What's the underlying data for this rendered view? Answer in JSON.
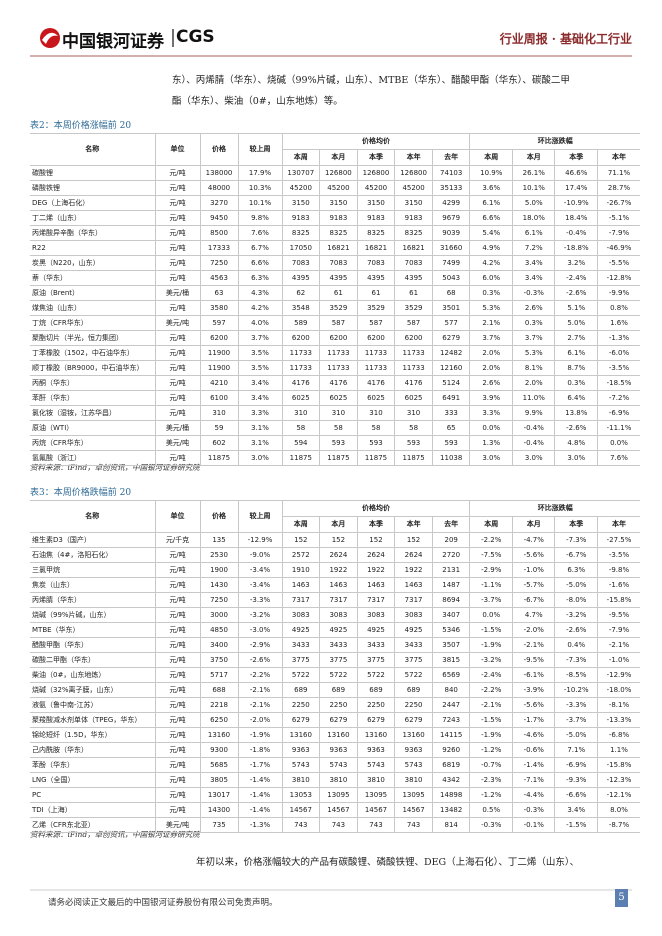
{
  "header": {
    "logo_cn": "中国银河证券",
    "logo_en": "CGS",
    "report_type": "行业周报",
    "separator": "·",
    "industry": "基础化工行业"
  },
  "intro_lines": [
    "东）、丙烯腈（华东）、烧碱（99%片碱，山东）、MTBE（华东）、醋酸甲酯（华东）、碳酸二甲",
    "酯（华东）、柴油（0#，山东地炼）等。"
  ],
  "tables": [
    {
      "caption": "表2：本周价格涨幅前 20",
      "columns": {
        "name": "名称",
        "unit": "单位",
        "price": "价格",
        "weekly_change": "较上周",
        "avg_group": "价格均价",
        "avg_cols": [
          "本周",
          "本月",
          "本季",
          "本年",
          "去年"
        ],
        "chg_group": "环比涨跌幅",
        "chg_cols": [
          "本周",
          "本月",
          "本季",
          "本年"
        ]
      },
      "rows": [
        [
          "碳酸锂",
          "元/吨",
          "138000",
          "17.9%",
          "130707",
          "126800",
          "126800",
          "126800",
          "74103",
          "10.9%",
          "26.1%",
          "46.6%",
          "71.1%"
        ],
        [
          "磷酸铁锂",
          "元/吨",
          "48000",
          "10.3%",
          "45200",
          "45200",
          "45200",
          "45200",
          "35133",
          "3.6%",
          "10.1%",
          "17.4%",
          "28.7%"
        ],
        [
          "DEG（上海石化）",
          "元/吨",
          "3270",
          "10.1%",
          "3150",
          "3150",
          "3150",
          "3150",
          "4299",
          "6.1%",
          "5.0%",
          "-10.9%",
          "-26.7%"
        ],
        [
          "丁二烯（山东）",
          "元/吨",
          "9450",
          "9.8%",
          "9183",
          "9183",
          "9183",
          "9183",
          "9679",
          "6.6%",
          "18.0%",
          "18.4%",
          "-5.1%"
        ],
        [
          "丙烯酸异辛酯（华东）",
          "元/吨",
          "8500",
          "7.6%",
          "8325",
          "8325",
          "8325",
          "8325",
          "9039",
          "5.4%",
          "6.1%",
          "-0.4%",
          "-7.9%"
        ],
        [
          "R22",
          "元/吨",
          "17333",
          "6.7%",
          "17050",
          "16821",
          "16821",
          "16821",
          "31660",
          "4.9%",
          "7.2%",
          "-18.8%",
          "-46.9%"
        ],
        [
          "炭黑（N220，山东）",
          "元/吨",
          "7250",
          "6.6%",
          "7083",
          "7083",
          "7083",
          "7083",
          "7499",
          "4.2%",
          "3.4%",
          "3.2%",
          "-5.5%"
        ],
        [
          "萘（华东）",
          "元/吨",
          "4563",
          "6.3%",
          "4395",
          "4395",
          "4395",
          "4395",
          "5043",
          "6.0%",
          "3.4%",
          "-2.4%",
          "-12.8%"
        ],
        [
          "原油（Brent）",
          "美元/桶",
          "63",
          "4.3%",
          "62",
          "61",
          "61",
          "61",
          "68",
          "0.3%",
          "-0.3%",
          "-2.6%",
          "-9.9%"
        ],
        [
          "煤焦油（山东）",
          "元/吨",
          "3580",
          "4.2%",
          "3548",
          "3529",
          "3529",
          "3529",
          "3501",
          "5.3%",
          "2.6%",
          "5.1%",
          "0.8%"
        ],
        [
          "丁烷（CFR华东）",
          "美元/吨",
          "597",
          "4.0%",
          "589",
          "587",
          "587",
          "587",
          "577",
          "2.1%",
          "0.3%",
          "5.0%",
          "1.6%"
        ],
        [
          "聚酯切片（半光，恒力集团）",
          "元/吨",
          "6200",
          "3.7%",
          "6200",
          "6200",
          "6200",
          "6200",
          "6279",
          "3.7%",
          "3.7%",
          "2.7%",
          "-1.3%"
        ],
        [
          "丁苯橡胶（1502，中石油华东）",
          "元/吨",
          "11900",
          "3.5%",
          "11733",
          "11733",
          "11733",
          "11733",
          "12482",
          "2.0%",
          "5.3%",
          "6.1%",
          "-6.0%"
        ],
        [
          "顺丁橡胶（BR9000，中石油华东）",
          "元/吨",
          "11900",
          "3.5%",
          "11733",
          "11733",
          "11733",
          "11733",
          "12160",
          "2.0%",
          "8.1%",
          "8.7%",
          "-3.5%"
        ],
        [
          "丙酮（华东）",
          "元/吨",
          "4210",
          "3.4%",
          "4176",
          "4176",
          "4176",
          "4176",
          "5124",
          "2.6%",
          "2.0%",
          "0.3%",
          "-18.5%"
        ],
        [
          "苯酐（华东）",
          "元/吨",
          "6100",
          "3.4%",
          "6025",
          "6025",
          "6025",
          "6025",
          "6491",
          "3.9%",
          "11.0%",
          "6.4%",
          "-7.2%"
        ],
        [
          "氯化铵（湿铵，江苏华昌）",
          "元/吨",
          "310",
          "3.3%",
          "310",
          "310",
          "310",
          "310",
          "333",
          "3.3%",
          "9.9%",
          "13.8%",
          "-6.9%"
        ],
        [
          "原油（WTI）",
          "美元/桶",
          "59",
          "3.1%",
          "58",
          "58",
          "58",
          "58",
          "65",
          "0.0%",
          "-0.4%",
          "-2.6%",
          "-11.1%"
        ],
        [
          "丙烷（CFR华东）",
          "美元/吨",
          "602",
          "3.1%",
          "594",
          "593",
          "593",
          "593",
          "593",
          "1.3%",
          "-0.4%",
          "4.8%",
          "0.0%"
        ],
        [
          "氢氟酸（浙江）",
          "元/吨",
          "11875",
          "3.0%",
          "11875",
          "11875",
          "11875",
          "11875",
          "11038",
          "3.0%",
          "3.0%",
          "3.0%",
          "7.6%"
        ]
      ],
      "source": "资料来源：iFind，卓创资讯，中国银河证券研究院"
    },
    {
      "caption": "表3：本周价格跌幅前 20",
      "columns": {
        "name": "名称",
        "unit": "单位",
        "price": "价格",
        "weekly_change": "较上周",
        "avg_group": "价格均价",
        "avg_cols": [
          "本周",
          "本月",
          "本季",
          "本年",
          "去年"
        ],
        "chg_group": "环比涨跌幅",
        "chg_cols": [
          "本周",
          "本月",
          "本季",
          "本年"
        ]
      },
      "rows": [
        [
          "维生素D3（国产）",
          "元/千克",
          "135",
          "-12.9%",
          "152",
          "152",
          "152",
          "152",
          "209",
          "-2.2%",
          "-4.7%",
          "-7.3%",
          "-27.5%"
        ],
        [
          "石油焦（4#，洛阳石化）",
          "元/吨",
          "2530",
          "-9.0%",
          "2572",
          "2624",
          "2624",
          "2624",
          "2720",
          "-7.5%",
          "-5.6%",
          "-6.7%",
          "-3.5%"
        ],
        [
          "三氯甲烷",
          "元/吨",
          "1900",
          "-3.4%",
          "1910",
          "1922",
          "1922",
          "1922",
          "2131",
          "-2.9%",
          "-1.0%",
          "6.3%",
          "-9.8%"
        ],
        [
          "焦炭（山东）",
          "元/吨",
          "1430",
          "-3.4%",
          "1463",
          "1463",
          "1463",
          "1463",
          "1487",
          "-1.1%",
          "-5.7%",
          "-5.0%",
          "-1.6%"
        ],
        [
          "丙烯腈（华东）",
          "元/吨",
          "7250",
          "-3.3%",
          "7317",
          "7317",
          "7317",
          "7317",
          "8694",
          "-3.7%",
          "-6.7%",
          "-8.0%",
          "-15.8%"
        ],
        [
          "烧碱（99%片碱，山东）",
          "元/吨",
          "3000",
          "-3.2%",
          "3083",
          "3083",
          "3083",
          "3083",
          "3407",
          "0.0%",
          "4.7%",
          "-3.2%",
          "-9.5%"
        ],
        [
          "MTBE（华东）",
          "元/吨",
          "4850",
          "-3.0%",
          "4925",
          "4925",
          "4925",
          "4925",
          "5346",
          "-1.5%",
          "-2.0%",
          "-2.6%",
          "-7.9%"
        ],
        [
          "醋酸甲酯（华东）",
          "元/吨",
          "3400",
          "-2.9%",
          "3433",
          "3433",
          "3433",
          "3433",
          "3507",
          "-1.9%",
          "-2.1%",
          "0.4%",
          "-2.1%"
        ],
        [
          "碳酸二甲酯（华东）",
          "元/吨",
          "3750",
          "-2.6%",
          "3775",
          "3775",
          "3775",
          "3775",
          "3815",
          "-3.2%",
          "-9.5%",
          "-7.3%",
          "-1.0%"
        ],
        [
          "柴油（0#，山东地炼）",
          "元/吨",
          "5717",
          "-2.2%",
          "5722",
          "5722",
          "5722",
          "5722",
          "6569",
          "-2.4%",
          "-6.1%",
          "-8.5%",
          "-12.9%"
        ],
        [
          "烧碱（32%离子膜，山东）",
          "元/吨",
          "688",
          "-2.1%",
          "689",
          "689",
          "689",
          "689",
          "840",
          "-2.2%",
          "-3.9%",
          "-10.2%",
          "-18.0%"
        ],
        [
          "液氨（鲁中南-江苏）",
          "元/吨",
          "2218",
          "-2.1%",
          "2250",
          "2250",
          "2250",
          "2250",
          "2447",
          "-2.1%",
          "-5.6%",
          "-3.3%",
          "-8.1%"
        ],
        [
          "聚羧酸减水剂单体（TPEG，华东）",
          "元/吨",
          "6250",
          "-2.0%",
          "6279",
          "6279",
          "6279",
          "6279",
          "7243",
          "-1.5%",
          "-1.7%",
          "-3.7%",
          "-13.3%"
        ],
        [
          "锦纶短纤（1.5D，华东）",
          "元/吨",
          "13160",
          "-1.9%",
          "13160",
          "13160",
          "13160",
          "13160",
          "14115",
          "-1.9%",
          "-4.6%",
          "-5.0%",
          "-6.8%"
        ],
        [
          "己内酰胺（华东）",
          "元/吨",
          "9300",
          "-1.8%",
          "9363",
          "9363",
          "9363",
          "9363",
          "9260",
          "-1.2%",
          "-0.6%",
          "7.1%",
          "1.1%"
        ],
        [
          "苯酚（华东）",
          "元/吨",
          "5685",
          "-1.7%",
          "5743",
          "5743",
          "5743",
          "5743",
          "6819",
          "-0.7%",
          "-1.4%",
          "-6.9%",
          "-15.8%"
        ],
        [
          "LNG（全国）",
          "元/吨",
          "3805",
          "-1.4%",
          "3810",
          "3810",
          "3810",
          "3810",
          "4342",
          "-2.3%",
          "-7.1%",
          "-9.3%",
          "-12.3%"
        ],
        [
          "PC",
          "元/吨",
          "13017",
          "-1.4%",
          "13053",
          "13095",
          "13095",
          "13095",
          "14898",
          "-1.2%",
          "-4.4%",
          "-6.6%",
          "-12.1%"
        ],
        [
          "TDI（上海）",
          "元/吨",
          "14300",
          "-1.4%",
          "14567",
          "14567",
          "14567",
          "14567",
          "13482",
          "0.5%",
          "-0.3%",
          "3.4%",
          "8.0%"
        ],
        [
          "乙烯（CFR东北亚）",
          "美元/吨",
          "735",
          "-1.3%",
          "743",
          "743",
          "743",
          "743",
          "814",
          "-0.3%",
          "-0.1%",
          "-1.5%",
          "-8.7%"
        ]
      ],
      "source": "资料来源：iFind，卓创资讯，中国银河证券研究院"
    }
  ],
  "closing_text": "年初以来，价格涨幅较大的产品有碳酸锂、磷酸铁锂、DEG（上海石化）、丁二烯（山东）、",
  "footer": {
    "disclaimer": "请务必阅读正文最后的中国银河证券股份有限公司免责声明。",
    "page": "5"
  }
}
